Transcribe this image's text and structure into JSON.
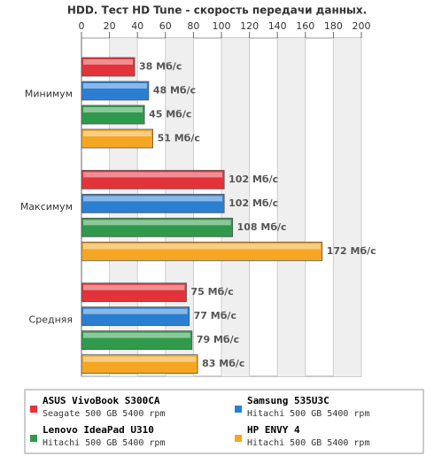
{
  "chart_data": {
    "type": "bar",
    "orientation": "horizontal",
    "title": "HDD. Тест HD Tune - скорость передачи данных.",
    "categories": [
      "Минимум",
      "Максимум",
      "Средняя"
    ],
    "series": [
      {
        "name": "ASUS VivoBook S300CA",
        "drive": "Seagate 500 GB 5400 rpm",
        "color": "#e2333b",
        "values": [
          38,
          102,
          75
        ],
        "value_labels": [
          "38 Мб/с",
          "102 Мб/с",
          "75 Мб/с"
        ]
      },
      {
        "name": "Samsung 535U3C",
        "drive": "Hitachi 500 GB 5400 rpm",
        "color": "#2b7fd2",
        "values": [
          48,
          102,
          77
        ],
        "value_labels": [
          "48 Мб/с",
          "102 Мб/с",
          "77 Мб/с"
        ]
      },
      {
        "name": "Lenovo IdeaPad U310",
        "drive": "Hitachi 500 GB 5400 rpm",
        "color": "#2f9a4b",
        "values": [
          45,
          108,
          79
        ],
        "value_labels": [
          "45 Мб/с",
          "108 Мб/с",
          "79 Мб/с"
        ]
      },
      {
        "name": "HP ENVY 4",
        "drive": "Hitachi 500 GB 5400 rpm",
        "color": "#f5a623",
        "values": [
          51,
          172,
          83
        ],
        "value_labels": [
          "51 Мб/с",
          "172 Мб/с",
          "83 Мб/с"
        ]
      }
    ],
    "xlim": [
      0,
      200
    ],
    "xticks": [
      0,
      20,
      40,
      60,
      80,
      100,
      120,
      140,
      160,
      180,
      200
    ],
    "grid": true
  }
}
